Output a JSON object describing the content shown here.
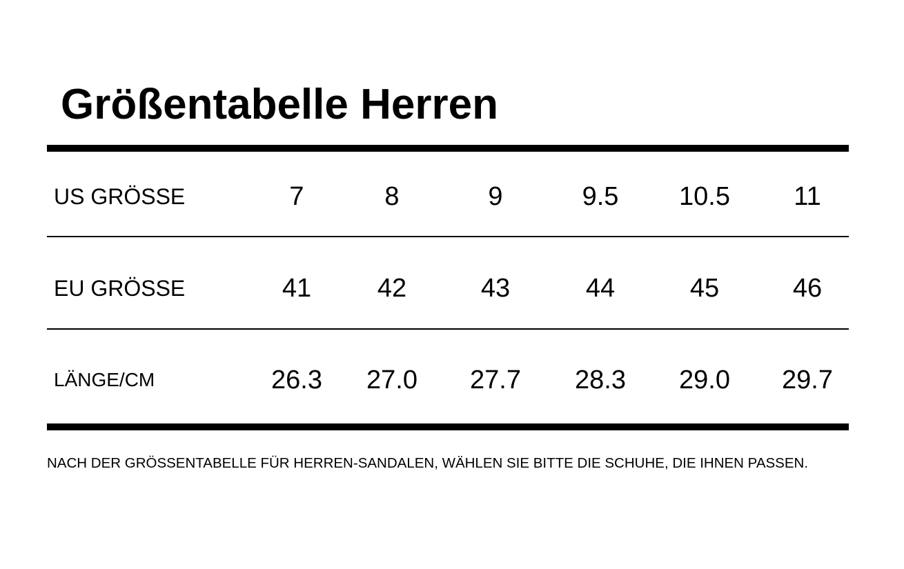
{
  "header": {
    "title": "Größentabelle Herren"
  },
  "table": {
    "rows": [
      [
        "US GRÖSSE",
        "7",
        "8",
        "9",
        "9.5",
        "10.5",
        "11"
      ],
      [
        "EU GRÖSSE",
        "41",
        "42",
        "43",
        "44",
        "45",
        "46"
      ],
      [
        "LÄNGE/CM",
        "26.3",
        "27.0",
        "27.7",
        "28.3",
        "29.0",
        "29.7"
      ]
    ]
  },
  "footnote": "NACH DER GRÖSSENTABELLE FÜR HERREN-SANDALEN, WÄHLEN SIE BITTE DIE SCHUHE, DIE IHNEN PASSEN."
}
